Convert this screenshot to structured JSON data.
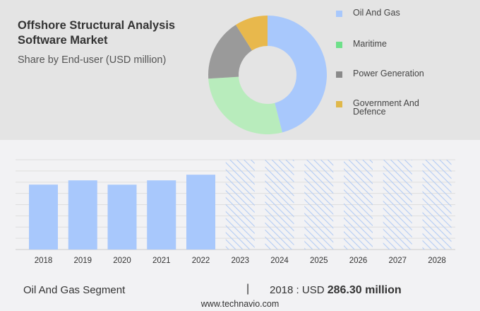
{
  "header": {
    "title": "Offshore Structural Analysis Software Market",
    "subtitle": "Share by End-user (USD million)"
  },
  "colors": {
    "oil_gas": "#a8c8fc",
    "maritime": "#b8ecbc",
    "power": "#9a9a9a",
    "government": "#e8b84c",
    "forecast_hatch": "#b4ccf4"
  },
  "chart_data": [
    {
      "type": "pie",
      "subtype": "donut",
      "legend_position": "right",
      "slices": [
        {
          "name": "Oil And Gas",
          "value": 46,
          "color": "#a8c8fc",
          "legend_color": "#a8c8fc"
        },
        {
          "name": "Maritime",
          "value": 28,
          "color": "#b8ecbc",
          "legend_color": "#6ee08a"
        },
        {
          "name": "Power Generation",
          "value": 17,
          "color": "#9a9a9a",
          "legend_color": "#8a8a8a"
        },
        {
          "name": "Government And Defence",
          "value": 9,
          "color": "#e8b84c",
          "legend_color": "#e0b84a"
        }
      ]
    },
    {
      "type": "bar",
      "categories": [
        "2018",
        "2019",
        "2020",
        "2021",
        "2022",
        "2023",
        "2024",
        "2025",
        "2026",
        "2027",
        "2028"
      ],
      "values": [
        286.3,
        305,
        286,
        305,
        330,
        null,
        null,
        null,
        null,
        null,
        null
      ],
      "forecast_categories": [
        "2023",
        "2024",
        "2025",
        "2026",
        "2027",
        "2028"
      ],
      "ylim": [
        0,
        396
      ],
      "grid": true,
      "y_tick_labels": false
    }
  ],
  "footer": {
    "segment": "Oil And Gas Segment",
    "separator": "|",
    "year_label": "2018 : USD",
    "value": "286.30 million",
    "site": "www.technavio.com"
  }
}
